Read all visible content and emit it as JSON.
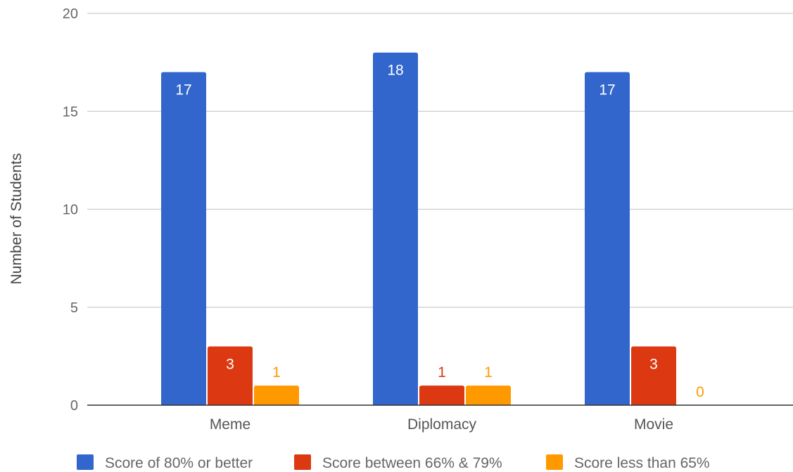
{
  "chart_data": {
    "type": "bar",
    "ylabel": "Number of Students",
    "xlabel": "",
    "ylim": [
      0,
      20
    ],
    "yticks": [
      0,
      5,
      10,
      15,
      20
    ],
    "grid": true,
    "legend_position": "bottom",
    "categories": [
      "Meme",
      "Diplomacy",
      "Movie"
    ],
    "series": [
      {
        "name": "Score of 80% or better",
        "color": "#3366cc",
        "label_color": "#ffffff",
        "values": [
          17,
          18,
          17
        ]
      },
      {
        "name": "Score between 66% & 79%",
        "color": "#dc3912",
        "label_color": "#ffffff",
        "values": [
          3,
          1,
          3
        ]
      },
      {
        "name": "Score less than 65%",
        "color": "#ff9900",
        "label_color": "#ff9900",
        "values": [
          1,
          1,
          0
        ]
      }
    ]
  }
}
